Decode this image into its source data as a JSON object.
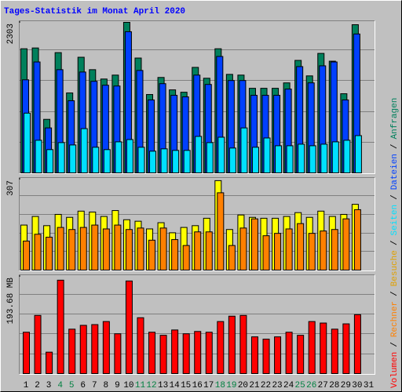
{
  "legend_separator": "/",
  "chart_data": [
    {
      "type": "bar",
      "title": "Tages-Statistik im Monat April 2020",
      "ylim": [
        0,
        2303
      ],
      "yticks": [
        2303
      ],
      "series": [
        {
          "name": "Anfragen",
          "color": "#00805c",
          "values": [
            1899,
            1911,
            819,
            1840,
            1223,
            1769,
            1579,
            1436,
            1496,
            2303,
            1757,
            1199,
            1460,
            1270,
            1234,
            1614,
            1448,
            1899,
            1507,
            1496,
            1294,
            1294,
            1294,
            1377,
            1721,
            1484,
            1828,
            1709,
            1211,
            2267,
            null
          ]
        },
        {
          "name": "Dateien",
          "color": "#0040ff",
          "values": [
            1424,
            1697,
            688,
            1579,
            1104,
            1543,
            1401,
            1341,
            1329,
            2160,
            1567,
            1116,
            1365,
            1187,
            1163,
            1496,
            1353,
            1781,
            1413,
            1413,
            1187,
            1187,
            1187,
            1282,
            1626,
            1377,
            1638,
            1697,
            1116,
            2125,
            null
          ]
        },
        {
          "name": "Seiten",
          "color": "#00e0ff",
          "values": [
            914,
            499,
            356,
            463,
            427,
            677,
            392,
            356,
            475,
            510,
            392,
            332,
            368,
            344,
            344,
            558,
            463,
            546,
            380,
            688,
            392,
            534,
            415,
            415,
            439,
            415,
            439,
            475,
            499,
            570,
            null
          ]
        }
      ]
    },
    {
      "type": "bar",
      "ylim": [
        0,
        307
      ],
      "yticks": [
        307
      ],
      "series": [
        {
          "name": "Besuche",
          "color": "#ffff00",
          "values": [
            152,
            181,
            150,
            188,
            178,
            199,
            196,
            181,
            201,
            170,
            165,
            139,
            160,
            126,
            144,
            150,
            175,
            302,
            137,
            186,
            178,
            175,
            175,
            181,
            194,
            178,
            199,
            181,
            188,
            222,
            null
          ]
        },
        {
          "name": "Rechner",
          "color": "#ff8000",
          "values": [
            98,
            121,
            111,
            144,
            137,
            144,
            152,
            139,
            152,
            137,
            142,
            101,
            142,
            103,
            83,
            129,
            129,
            261,
            83,
            142,
            173,
            116,
            124,
            139,
            157,
            124,
            132,
            137,
            173,
            204,
            null
          ]
        }
      ]
    },
    {
      "type": "bar",
      "ylim": [
        0,
        193.68
      ],
      "yticks": [
        {
          "value": 193.68,
          "label": "193.68 MB"
        }
      ],
      "categories": [
        "1",
        "2",
        "3",
        "4",
        "5",
        "6",
        "7",
        "8",
        "9",
        "10",
        "11",
        "12",
        "13",
        "14",
        "15",
        "16",
        "17",
        "18",
        "19",
        "20",
        "21",
        "22",
        "23",
        "24",
        "25",
        "26",
        "27",
        "28",
        "29",
        "30",
        "31"
      ],
      "highlight_categories": [
        3,
        4,
        10,
        11,
        17,
        18,
        24,
        25
      ],
      "highlight_color": "#008040",
      "series": [
        {
          "name": "Volumen",
          "color": "#ff0000",
          "values": [
            82.4,
            115.9,
            42.7,
            186.1,
            88.5,
            96.1,
            97.6,
            103.7,
            79.3,
            184.5,
            111.3,
            82.4,
            76.3,
            86.9,
            79.3,
            83.9,
            82.4,
            103.7,
            114.4,
            115.9,
            73.2,
            68.6,
            73.2,
            82.4,
            76.3,
            103.7,
            100.7,
            88.5,
            99.1,
            117.4,
            null
          ]
        }
      ]
    }
  ]
}
